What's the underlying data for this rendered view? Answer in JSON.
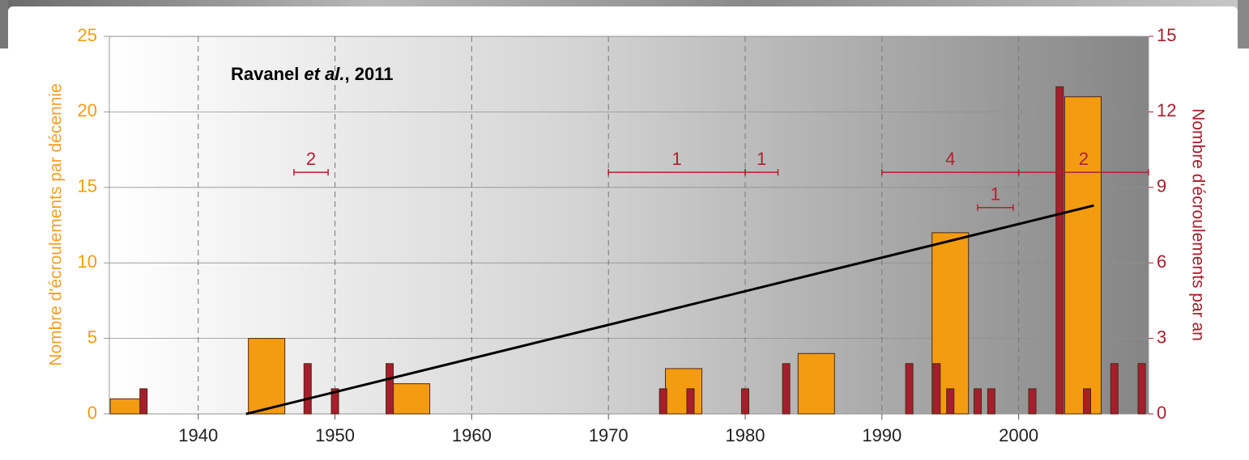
{
  "chart_data": {
    "type": "bar",
    "annotation_parts": [
      "Ravanel",
      "et al.",
      ", 2011"
    ],
    "ylabel": "Nombre d'écroulements par décennie",
    "y2label": "Nombre d'écroulements par an",
    "xlim": [
      1933.5,
      2009.5
    ],
    "xticks": [
      1940,
      1950,
      1960,
      1970,
      1980,
      1990,
      2000
    ],
    "ylim": [
      0,
      25
    ],
    "yticks": [
      0,
      5,
      10,
      15,
      20,
      25
    ],
    "y2lim": [
      0,
      15
    ],
    "y2ticks": [
      0,
      3,
      6,
      9,
      12,
      15
    ],
    "grid": true,
    "series": [
      {
        "color": "#f39c12",
        "axis": "y",
        "x": [
          1934.9,
          1945,
          1955.6,
          1975.5,
          1985.2,
          1995,
          2004.7
        ],
        "values": [
          1,
          5,
          2,
          3,
          4,
          12,
          21
        ]
      },
      {
        "color": "#a61e2d",
        "axis": "y2",
        "x": [
          1936,
          1948,
          1950,
          1954,
          1974,
          1976,
          1980,
          1983,
          1992,
          1994,
          1995,
          1997,
          1998,
          2001,
          2003,
          2005,
          2007,
          2009
        ],
        "values": [
          1,
          2,
          1,
          2,
          1,
          1,
          1,
          2,
          2,
          2,
          1,
          1,
          1,
          1,
          13,
          1,
          2,
          2
        ]
      },
      {
        "type": "line",
        "color": "#000000",
        "axis": "y",
        "x": [
          1943.5,
          2005.5
        ],
        "values": [
          0,
          13.8
        ]
      }
    ],
    "ranges": [
      {
        "x": [
          1947,
          1949.5
        ],
        "y": 9.6,
        "label": 2
      },
      {
        "x": [
          1970,
          1980
        ],
        "y": 9.6,
        "label": 1
      },
      {
        "x": [
          1980,
          1982.4
        ],
        "y": 9.6,
        "label": 1
      },
      {
        "x": [
          1990,
          2000
        ],
        "y": 9.6,
        "label": 4
      },
      {
        "x": [
          2000,
          2009.5
        ],
        "y": 9.6,
        "label": 2
      },
      {
        "x": [
          1997,
          1999.6
        ],
        "y": 8.2,
        "label": 1
      }
    ],
    "range_color": "#b02030"
  }
}
